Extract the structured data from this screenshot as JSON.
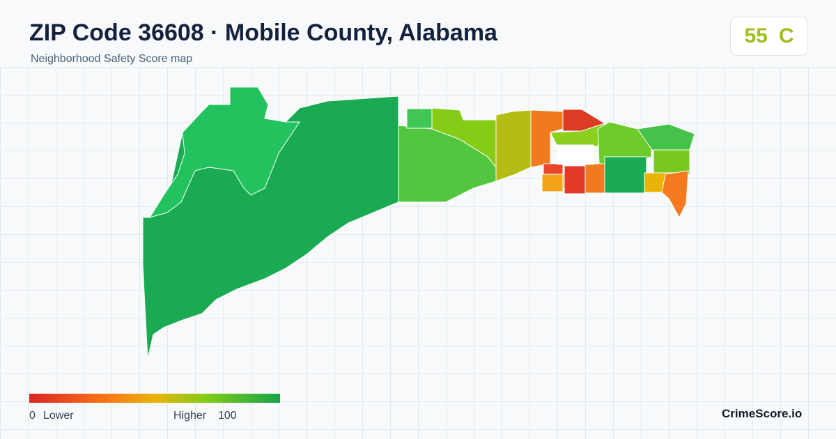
{
  "header": {
    "title": "ZIP Code 36608 · Mobile County, Alabama",
    "subtitle": "Neighborhood Safety Score map"
  },
  "score": {
    "value": 55,
    "grade": "C"
  },
  "legend": {
    "min": 0,
    "min_label": "Lower",
    "max_label": "Higher",
    "max": 100
  },
  "brand": "CrimeScore.io"
}
